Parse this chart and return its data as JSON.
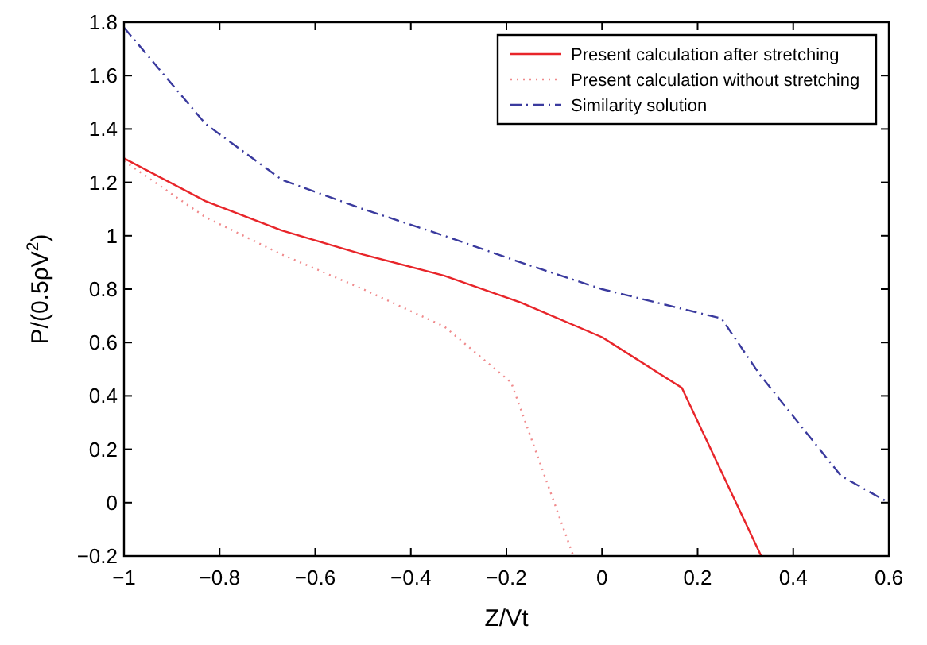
{
  "chart_data": {
    "type": "line",
    "xlabel": "Z/Vt",
    "ylabel": "P/(0.5ρV$^{2}$)",
    "xlim": [
      -1,
      0.6
    ],
    "ylim": [
      -0.2,
      1.8
    ],
    "xticks": [
      {
        "value": -1,
        "label": "−1"
      },
      {
        "value": -0.8,
        "label": "−0.8"
      },
      {
        "value": -0.6,
        "label": "−0.6"
      },
      {
        "value": -0.4,
        "label": "−0.4"
      },
      {
        "value": -0.2,
        "label": "−0.2"
      },
      0,
      0.2,
      0.4,
      0.6
    ],
    "yticks": [
      {
        "value": -0.2,
        "label": "−0.2"
      },
      0,
      0.2,
      0.4,
      0.6,
      0.8,
      1,
      1.2,
      1.4,
      1.6,
      1.8
    ],
    "grid": false,
    "legend": "top right",
    "series": [
      {
        "name": "Present calculation after stretching",
        "color": "#e8252a",
        "line_style": "solid",
        "x": [
          -1,
          -0.83,
          -0.67,
          -0.5,
          -0.33,
          -0.17,
          0,
          0.167,
          0.333
        ],
        "values": [
          1.29,
          1.13,
          1.02,
          0.93,
          0.85,
          0.75,
          0.62,
          0.43,
          -0.2
        ]
      },
      {
        "name": "Present calculation without stretching",
        "color": "#f08a8c",
        "line_style": "dotted",
        "x": [
          -1,
          -0.83,
          -0.67,
          -0.5,
          -0.33,
          -0.19,
          -0.06
        ],
        "values": [
          1.28,
          1.07,
          0.93,
          0.8,
          0.66,
          0.45,
          -0.2
        ]
      },
      {
        "name": "Similarity solution",
        "color": "#3a3a9e",
        "line_style": "dashdot",
        "x": [
          -1,
          -0.83,
          -0.67,
          -0.5,
          -0.33,
          -0.17,
          0,
          0.25,
          0.33,
          0.5,
          0.6
        ],
        "values": [
          1.78,
          1.42,
          1.21,
          1.1,
          1.0,
          0.9,
          0.8,
          0.69,
          0.48,
          0.1,
          0.0
        ]
      }
    ]
  }
}
